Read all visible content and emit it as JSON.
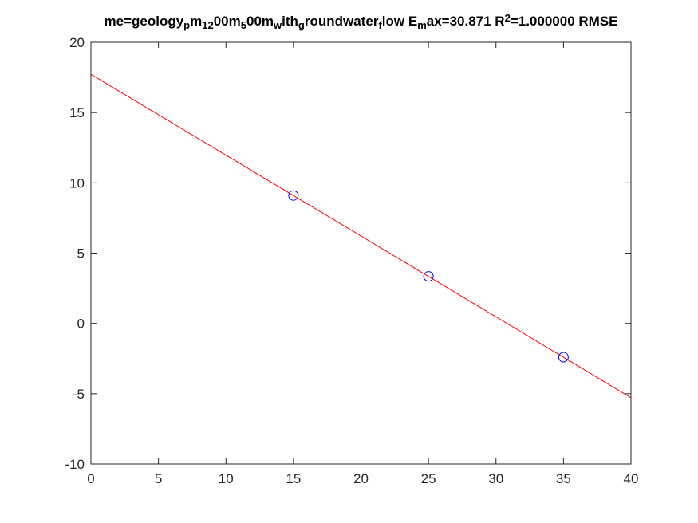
{
  "chart_data": {
    "type": "scatter",
    "title_parts": [
      {
        "t": "me=geology",
        "s": "n"
      },
      {
        "t": "p",
        "s": "sub"
      },
      {
        "t": "m",
        "s": "n"
      },
      {
        "t": "12",
        "s": "sub"
      },
      {
        "t": "00m",
        "s": "n"
      },
      {
        "t": "5",
        "s": "sub"
      },
      {
        "t": "00m",
        "s": "n"
      },
      {
        "t": "w",
        "s": "sub"
      },
      {
        "t": "ith",
        "s": "n"
      },
      {
        "t": "g",
        "s": "sub"
      },
      {
        "t": "roundwater",
        "s": "n"
      },
      {
        "t": "f",
        "s": "sub"
      },
      {
        "t": "low E",
        "s": "n"
      },
      {
        "t": "m",
        "s": "sub"
      },
      {
        "t": "ax=30.871 R",
        "s": "n"
      },
      {
        "t": "2",
        "s": "sup"
      },
      {
        "t": "=1.000000 RMSE",
        "s": "n"
      }
    ],
    "xlabel": "",
    "ylabel": "",
    "xlim": [
      0,
      40
    ],
    "ylim": [
      -10,
      20
    ],
    "xticks": [
      0,
      5,
      10,
      15,
      20,
      25,
      30,
      35,
      40
    ],
    "yticks": [
      -10,
      -5,
      0,
      5,
      10,
      15,
      20
    ],
    "grid": false,
    "series": [
      {
        "kind": "points",
        "marker": "circle-open",
        "color": "#0000ff",
        "x": [
          15,
          25,
          35
        ],
        "y": [
          9.1,
          3.35,
          -2.4
        ]
      },
      {
        "kind": "fit-line",
        "color": "#ff0000",
        "x": [
          0,
          40
        ],
        "y": [
          17.72,
          -5.28
        ]
      }
    ]
  }
}
